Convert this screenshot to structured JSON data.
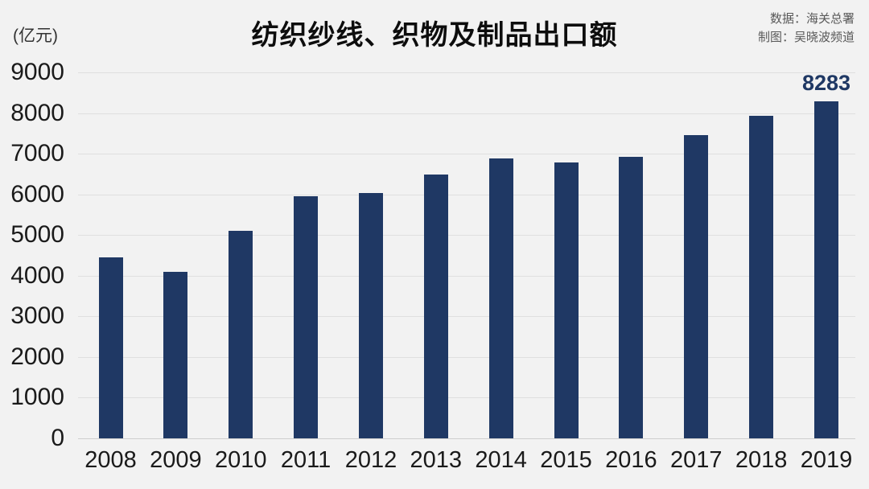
{
  "title": "纺织纱线、织物及制品出口额",
  "unit_label": "(亿元)",
  "source": {
    "data_credit": "数据：海关总署",
    "chart_credit": "制图：吴晓波频道"
  },
  "colors": {
    "bar": "#1f3864",
    "data_label": "#1f3864",
    "background": "#f2f2f2",
    "gridline": "#dfdfdf",
    "baseline": "#cfcfcf",
    "axis_text": "#1a1a1a",
    "source_text": "#595959"
  },
  "chart_data": {
    "type": "bar",
    "title": "纺织纱线、织物及制品出口额",
    "categories": [
      "2008",
      "2009",
      "2010",
      "2011",
      "2012",
      "2013",
      "2014",
      "2015",
      "2016",
      "2017",
      "2018",
      "2019"
    ],
    "values": [
      4460,
      4100,
      5100,
      5950,
      6030,
      6490,
      6880,
      6790,
      6920,
      7450,
      7930,
      8283
    ],
    "xlabel": "",
    "ylabel": "(亿元)",
    "ylim": [
      0,
      9000
    ],
    "yticks": [
      0,
      1000,
      2000,
      3000,
      4000,
      5000,
      6000,
      7000,
      8000,
      9000
    ],
    "grid": true,
    "legend_position": "none",
    "data_labels": [
      {
        "category": "2019",
        "text": "8283"
      }
    ]
  }
}
